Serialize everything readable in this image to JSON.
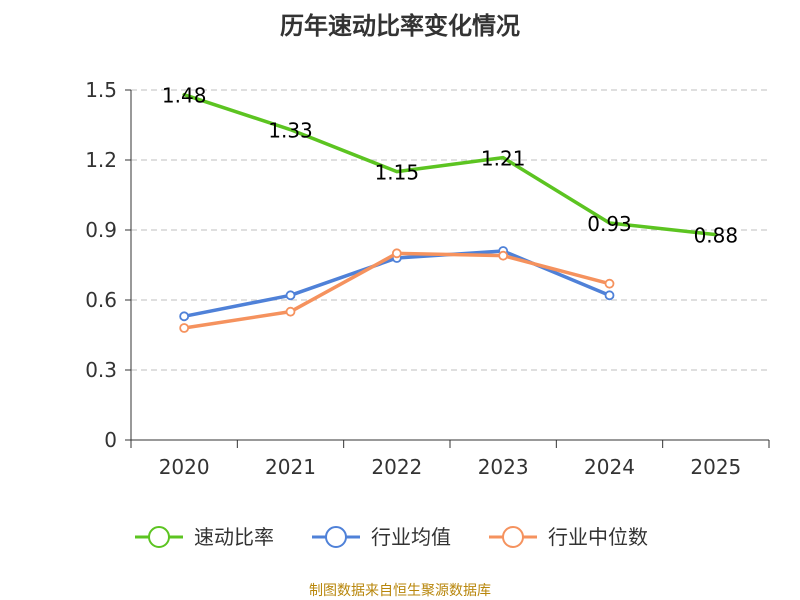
{
  "chart_data": {
    "type": "line",
    "title": "历年速动比率变化情况",
    "categories": [
      "2020",
      "2021",
      "2022",
      "2023",
      "2024",
      "2025"
    ],
    "ylim": [
      0,
      1.5
    ],
    "yticks": [
      0,
      0.3,
      0.6,
      0.9,
      1.2,
      1.5
    ],
    "ytick_labels": [
      "0",
      "0.3",
      "0.6",
      "0.9",
      "1.2",
      "1.5"
    ],
    "grid": true,
    "legend_position": "bottom",
    "series": [
      {
        "name": "速动比率",
        "color": "#5cc421",
        "values": [
          1.48,
          1.33,
          1.15,
          1.21,
          0.93,
          0.88
        ],
        "labels": [
          "1.48",
          "1.33",
          "1.15",
          "1.21",
          "0.93",
          "0.88"
        ],
        "show_labels": true,
        "show_markers": false
      },
      {
        "name": "行业均值",
        "color": "#4f81d8",
        "values": [
          0.53,
          0.62,
          0.78,
          0.81,
          0.62,
          null
        ],
        "show_labels": false,
        "show_markers": true
      },
      {
        "name": "行业中位数",
        "color": "#f5925e",
        "values": [
          0.48,
          0.55,
          0.8,
          0.79,
          0.67,
          null
        ],
        "show_labels": false,
        "show_markers": true
      }
    ]
  },
  "source_note": "制图数据来自恒生聚源数据库"
}
